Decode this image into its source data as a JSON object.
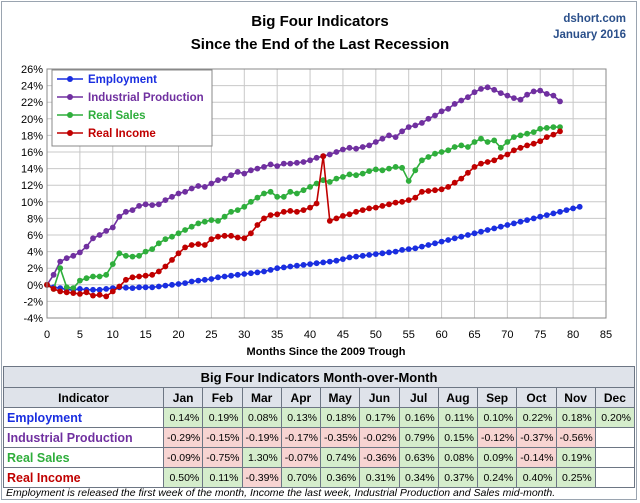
{
  "chart_data": {
    "type": "line",
    "title": "Big Four Indicators",
    "subtitle": "Since the End of the Last Recession",
    "source": "dshort.com",
    "date": "January 2016",
    "xlabel": "Months Since the 2009 Trough",
    "ylabel": "",
    "xlim": [
      0,
      85
    ],
    "ylim": [
      -4,
      26
    ],
    "x_ticks": [
      "0",
      "5",
      "10",
      "15",
      "20",
      "25",
      "30",
      "35",
      "40",
      "45",
      "50",
      "55",
      "60",
      "65",
      "70",
      "75",
      "80",
      "85"
    ],
    "y_ticks": [
      "-4%",
      "-2%",
      "0%",
      "2%",
      "4%",
      "6%",
      "8%",
      "10%",
      "12%",
      "14%",
      "16%",
      "18%",
      "20%",
      "22%",
      "24%",
      "26%"
    ],
    "grid": true,
    "legend_position": "top-left",
    "series": [
      {
        "name": "Employment",
        "color": "#1a2ee0",
        "y": [
          0,
          -0.3,
          -0.4,
          -0.55,
          -0.6,
          -0.5,
          -0.6,
          -0.6,
          -0.6,
          -0.5,
          -0.4,
          -0.3,
          -0.35,
          -0.4,
          -0.3,
          -0.3,
          -0.3,
          -0.2,
          -0.1,
          0,
          0.1,
          0.2,
          0.4,
          0.5,
          0.6,
          0.7,
          0.9,
          1.0,
          1.1,
          1.2,
          1.3,
          1.4,
          1.5,
          1.6,
          1.8,
          2.0,
          2.1,
          2.2,
          2.3,
          2.4,
          2.5,
          2.6,
          2.7,
          2.8,
          2.9,
          3.1,
          3.3,
          3.4,
          3.5,
          3.6,
          3.7,
          3.8,
          3.9,
          4.0,
          4.2,
          4.3,
          4.4,
          4.6,
          4.8,
          5.0,
          5.2,
          5.4,
          5.6,
          5.8,
          6.0,
          6.2,
          6.4,
          6.6,
          6.8,
          7.0,
          7.2,
          7.4,
          7.6,
          7.8,
          8.0,
          8.2,
          8.4,
          8.6,
          8.8,
          9.0,
          9.2,
          9.4
        ]
      },
      {
        "name": "Industrial Production",
        "color": "#7030a0",
        "y": [
          0,
          1.2,
          2.8,
          3.2,
          3.5,
          3.9,
          4.6,
          5.6,
          6.0,
          6.5,
          6.9,
          8.2,
          8.8,
          9.0,
          9.5,
          9.7,
          9.6,
          9.7,
          10.2,
          10.6,
          11.0,
          11.2,
          11.6,
          11.9,
          11.8,
          12.2,
          12.6,
          12.8,
          13.2,
          13.6,
          13.4,
          13.8,
          14.0,
          14.2,
          14.5,
          14.3,
          14.6,
          14.6,
          14.7,
          14.8,
          15.0,
          15.3,
          15.5,
          15.7,
          16.0,
          16.3,
          16.5,
          16.4,
          16.6,
          16.8,
          17.2,
          17.6,
          18.0,
          17.8,
          18.5,
          19.0,
          19.2,
          19.5,
          20.0,
          20.4,
          20.9,
          21.2,
          21.8,
          22.2,
          22.6,
          23.2,
          23.6,
          23.8,
          23.5,
          23.1,
          22.8,
          22.5,
          22.3,
          22.9,
          23.3,
          23.4,
          23.0,
          22.8,
          22.1
        ]
      },
      {
        "name": "Real Sales",
        "color": "#2fae3c",
        "y": [
          0,
          -0.5,
          2.0,
          -0.3,
          -0.4,
          0.5,
          0.8,
          1.0,
          1.0,
          1.2,
          2.5,
          3.8,
          3.5,
          3.4,
          3.5,
          4.0,
          4.3,
          5.0,
          5.5,
          5.8,
          6.2,
          6.6,
          7.0,
          7.4,
          7.6,
          7.8,
          7.7,
          8.2,
          8.8,
          9.0,
          9.4,
          10.0,
          10.5,
          11.0,
          11.2,
          10.6,
          10.6,
          11.2,
          11.0,
          11.4,
          11.8,
          12.2,
          12.6,
          12.4,
          12.8,
          13.0,
          13.3,
          13.2,
          13.4,
          13.7,
          13.9,
          13.8,
          14.0,
          14.2,
          14.1,
          12.5,
          13.8,
          15.0,
          15.4,
          15.8,
          16.0,
          16.2,
          16.6,
          16.8,
          16.6,
          17.2,
          17.6,
          17.2,
          17.4,
          16.5,
          17.2,
          17.8,
          18.0,
          18.2,
          18.4,
          18.8,
          18.9,
          19.0,
          19.0
        ]
      },
      {
        "name": "Real Income",
        "color": "#c00000",
        "y": [
          0,
          -0.5,
          -0.8,
          -0.9,
          -1.0,
          -1.1,
          -0.9,
          -1.3,
          -1.2,
          -1.4,
          -0.8,
          -0.2,
          0.6,
          0.9,
          1.0,
          1.1,
          1.2,
          1.6,
          2.2,
          3.0,
          3.8,
          4.5,
          4.8,
          4.9,
          4.8,
          5.5,
          5.8,
          5.9,
          5.9,
          5.7,
          5.6,
          6.2,
          7.2,
          8.0,
          8.4,
          8.5,
          8.8,
          8.9,
          8.8,
          9.0,
          9.3,
          9.8,
          15.5,
          7.7,
          8.0,
          8.3,
          8.5,
          8.8,
          9.0,
          9.2,
          9.3,
          9.5,
          9.7,
          9.9,
          10.0,
          10.2,
          10.5,
          11.2,
          11.3,
          11.4,
          11.5,
          11.8,
          12.3,
          12.8,
          13.5,
          14.2,
          14.6,
          14.8,
          15.0,
          15.4,
          15.7,
          16.2,
          16.5,
          16.8,
          17.0,
          17.3,
          17.8,
          18.1,
          18.5
        ]
      }
    ]
  },
  "table": {
    "title": "Big Four Indicators Month-over-Month",
    "header_label": "Indicator",
    "months": [
      "Jan",
      "Feb",
      "Mar",
      "Apr",
      "May",
      "Jun",
      "Jul",
      "Aug",
      "Sep",
      "Oct",
      "Nov",
      "Dec"
    ],
    "rows": [
      {
        "label": "Employment",
        "color": "#1a2ee0",
        "values": [
          "0.14%",
          "0.19%",
          "0.08%",
          "0.13%",
          "0.18%",
          "0.17%",
          "0.16%",
          "0.11%",
          "0.10%",
          "0.22%",
          "0.18%",
          "0.20%"
        ]
      },
      {
        "label": "Industrial Production",
        "color": "#7030a0",
        "values": [
          "-0.29%",
          "-0.15%",
          "-0.19%",
          "-0.17%",
          "-0.35%",
          "-0.02%",
          "0.79%",
          "0.15%",
          "-0.12%",
          "-0.37%",
          "-0.56%",
          ""
        ]
      },
      {
        "label": "Real Sales",
        "color": "#2fae3c",
        "values": [
          "-0.09%",
          "-0.75%",
          "1.30%",
          "-0.07%",
          "0.74%",
          "-0.36%",
          "0.63%",
          "0.08%",
          "0.09%",
          "-0.14%",
          "0.19%",
          ""
        ]
      },
      {
        "label": "Real Income",
        "color": "#c00000",
        "values": [
          "0.50%",
          "0.11%",
          "-0.39%",
          "0.70%",
          "0.36%",
          "0.31%",
          "0.34%",
          "0.37%",
          "0.24%",
          "0.40%",
          "0.25%",
          ""
        ]
      }
    ]
  },
  "footnote": "Employment is released the first week of the month, Income the last week, Industrial Production and Sales mid-month."
}
